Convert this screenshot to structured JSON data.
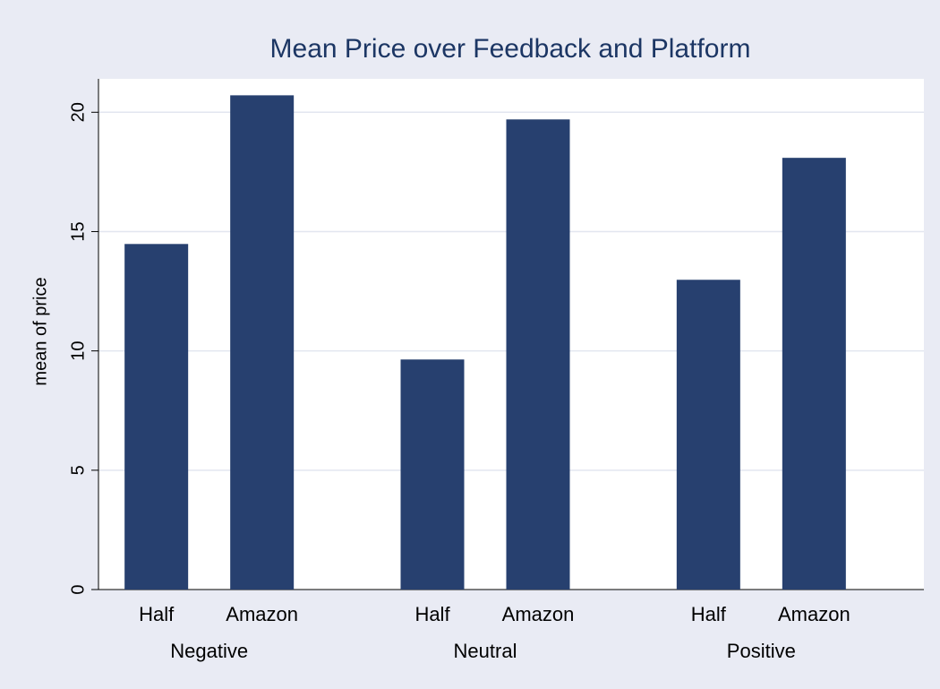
{
  "chart_data": {
    "type": "grouped-bar",
    "title": "Mean Price over Feedback and Platform",
    "ylabel": "mean of price",
    "groups": [
      {
        "name": "Negative",
        "categories": [
          "Half",
          "Amazon"
        ],
        "values": [
          14.48,
          20.71
        ]
      },
      {
        "name": "Neutral",
        "categories": [
          "Half",
          "Amazon"
        ],
        "values": [
          9.64,
          19.7
        ]
      },
      {
        "name": "Positive",
        "categories": [
          "Half",
          "Amazon"
        ],
        "values": [
          12.98,
          18.09
        ]
      }
    ],
    "color": "#27406f",
    "ylim": [
      0,
      21.4
    ],
    "yticks": [
      0,
      5,
      10,
      15,
      20
    ],
    "grid": true
  }
}
